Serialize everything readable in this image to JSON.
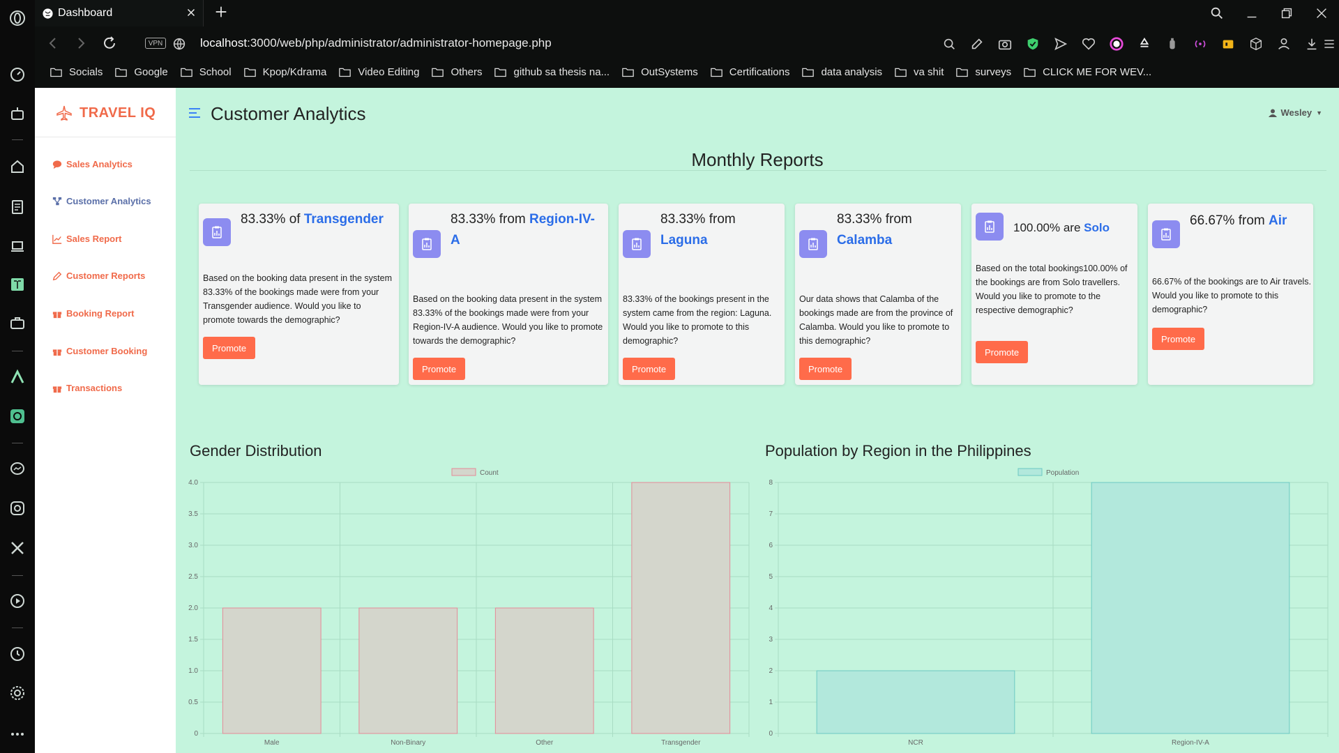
{
  "browser": {
    "tab_title": "Dashboard",
    "vpn_label": "VPN",
    "url_host": "localhost",
    "url_path": ":3000/web/php/administrator/administrator-homepage.php",
    "bookmarks": [
      "Socials",
      "Google",
      "School",
      "Kpop/Kdrama",
      "Video Editing",
      "Others",
      "github sa thesis na...",
      "OutSystems",
      "Certifications",
      "data analysis",
      "va shit",
      "surveys",
      "CLICK ME FOR WEV..."
    ]
  },
  "app": {
    "brand": "TRAVEL IQ",
    "sidebar": {
      "items": [
        {
          "label": "Sales Analytics",
          "icon": "chat-icon"
        },
        {
          "label": "Customer Analytics",
          "icon": "network-icon"
        },
        {
          "label": "Sales Report",
          "icon": "chart-line-icon"
        },
        {
          "label": "Customer Reports",
          "icon": "pencil-icon"
        },
        {
          "label": "Booking Report",
          "icon": "gift-icon"
        },
        {
          "label": "Customer Booking",
          "icon": "gift-icon"
        },
        {
          "label": "Transactions",
          "icon": "gift-icon"
        }
      ]
    },
    "page_title": "Customer Analytics",
    "user_name": "Wesley",
    "reports_title": "Monthly Reports",
    "promote_label": "Promote",
    "cards": [
      {
        "prefix": "83.33% of ",
        "highlight": "Transgender",
        "body": "Based on the booking data present in the system 83.33% of the bookings made were from your Transgender audience. Would you like to promote towards the demographic?"
      },
      {
        "prefix": "83.33% from ",
        "highlight": "Region-IV-A",
        "body": "Based on the booking data present in the system 83.33% of the bookings made were from your Region-IV-A audience. Would you like to promote towards the demographic?"
      },
      {
        "prefix": "83.33% from ",
        "highlight": "Laguna",
        "body": "83.33% of the bookings present in the system came from the region: Laguna. Would you like to promote to this demographic?"
      },
      {
        "prefix": "83.33% from ",
        "highlight": "Calamba",
        "body": "Our data shows that Calamba of the bookings made are from the province of Calamba. Would you like to promote to this demographic?"
      },
      {
        "prefix": "100.00% are ",
        "highlight": "Solo",
        "body": "Based on the total bookings100.00% of the bookings are from Solo travellers. Would you like to promote to the respective demographic?"
      },
      {
        "prefix": "66.67% from ",
        "highlight": "Air",
        "body": "66.67% of the bookings are to Air travels. Would you like to promote to this demographic?"
      }
    ]
  },
  "colors": {
    "accent": "#f06a4a",
    "button": "#ff6b4a",
    "highlight": "#2b6de8",
    "app_bg": "#c4f4dd"
  },
  "chart_data": [
    {
      "type": "bar",
      "title": "Gender Distribution",
      "categories": [
        "Male",
        "Non-Binary",
        "Other",
        "Transgender"
      ],
      "series": [
        {
          "name": "Count",
          "values": [
            2,
            2,
            2,
            4
          ]
        }
      ],
      "ylim": [
        0,
        4
      ],
      "yticks": [
        "0",
        "0.5",
        "1.0",
        "1.5",
        "2.0",
        "2.5",
        "3.0",
        "3.5",
        "4.0"
      ],
      "fill": "#d4d6cc",
      "stroke": "#e58a98",
      "legend": "top-center",
      "grid": true
    },
    {
      "type": "bar",
      "title": "Population by Region in the Philippines",
      "categories": [
        "NCR",
        "Region-IV-A"
      ],
      "series": [
        {
          "name": "Population",
          "values": [
            2,
            8
          ]
        }
      ],
      "ylim": [
        0,
        8
      ],
      "yticks": [
        "0",
        "1",
        "2",
        "3",
        "4",
        "5",
        "6",
        "7",
        "8"
      ],
      "fill": "#b2e8dc",
      "stroke": "#6cc9c2",
      "legend": "top-center",
      "grid": true
    }
  ]
}
